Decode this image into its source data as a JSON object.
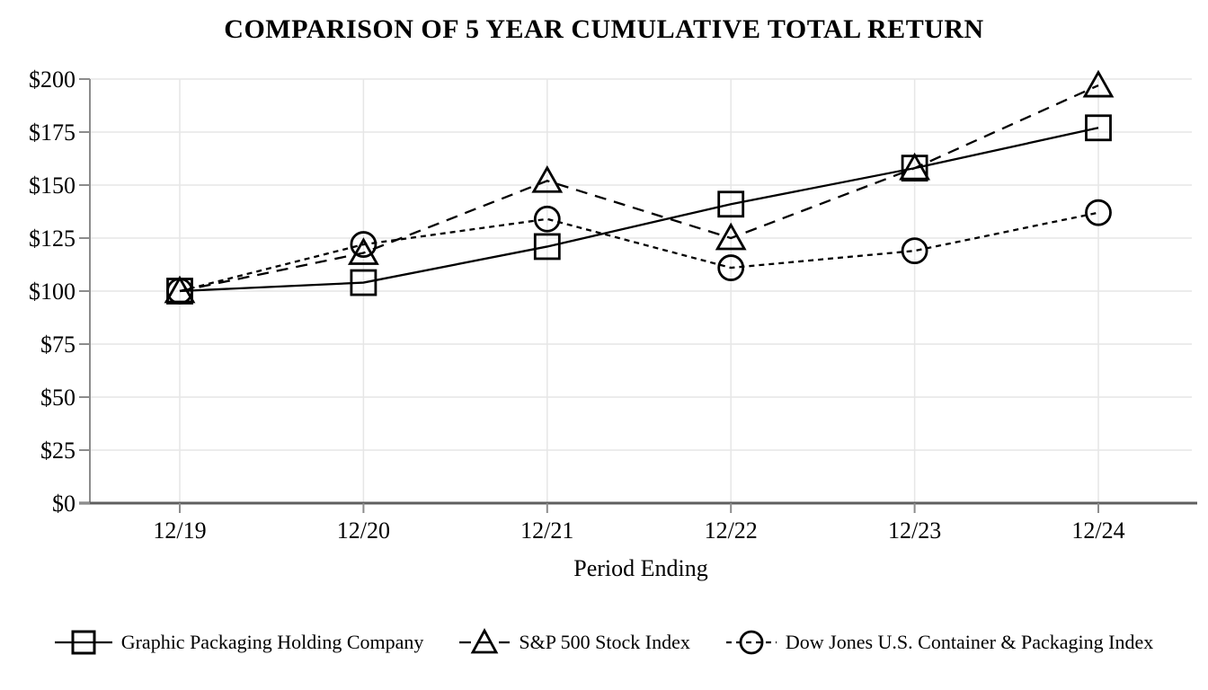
{
  "title": "COMPARISON OF 5 YEAR CUMULATIVE TOTAL RETURN",
  "chart_data": {
    "type": "line",
    "title": "COMPARISON OF 5 YEAR CUMULATIVE TOTAL RETURN",
    "categories": [
      "12/19",
      "12/20",
      "12/21",
      "12/22",
      "12/23",
      "12/24"
    ],
    "series": [
      {
        "name": "Graphic Packaging Holding Company",
        "marker": "square",
        "line_style": "solid",
        "color": "#000000",
        "values": [
          100,
          104,
          121,
          141,
          158,
          177
        ]
      },
      {
        "name": "S&P 500 Stock Index",
        "marker": "triangle",
        "line_style": "long-dash",
        "color": "#000000",
        "values": [
          100,
          118,
          152,
          125,
          158,
          197
        ]
      },
      {
        "name": "Dow Jones U.S. Container & Packaging Index",
        "marker": "circle",
        "line_style": "short-dash",
        "color": "#000000",
        "values": [
          100,
          122,
          134,
          111,
          119,
          137
        ]
      }
    ],
    "xlabel": "Period Ending",
    "ylabel": "",
    "ylim": [
      0,
      200
    ],
    "ytick_step": 25,
    "ytick_labels": [
      "$0",
      "$25",
      "$50",
      "$75",
      "$100",
      "$125",
      "$150",
      "$175",
      "$200"
    ],
    "grid": true,
    "legend_position": "bottom",
    "grid_color": "#e6e6e6",
    "axis_color": "#8c8c8c",
    "baseline_color": "#5f5f5f"
  }
}
